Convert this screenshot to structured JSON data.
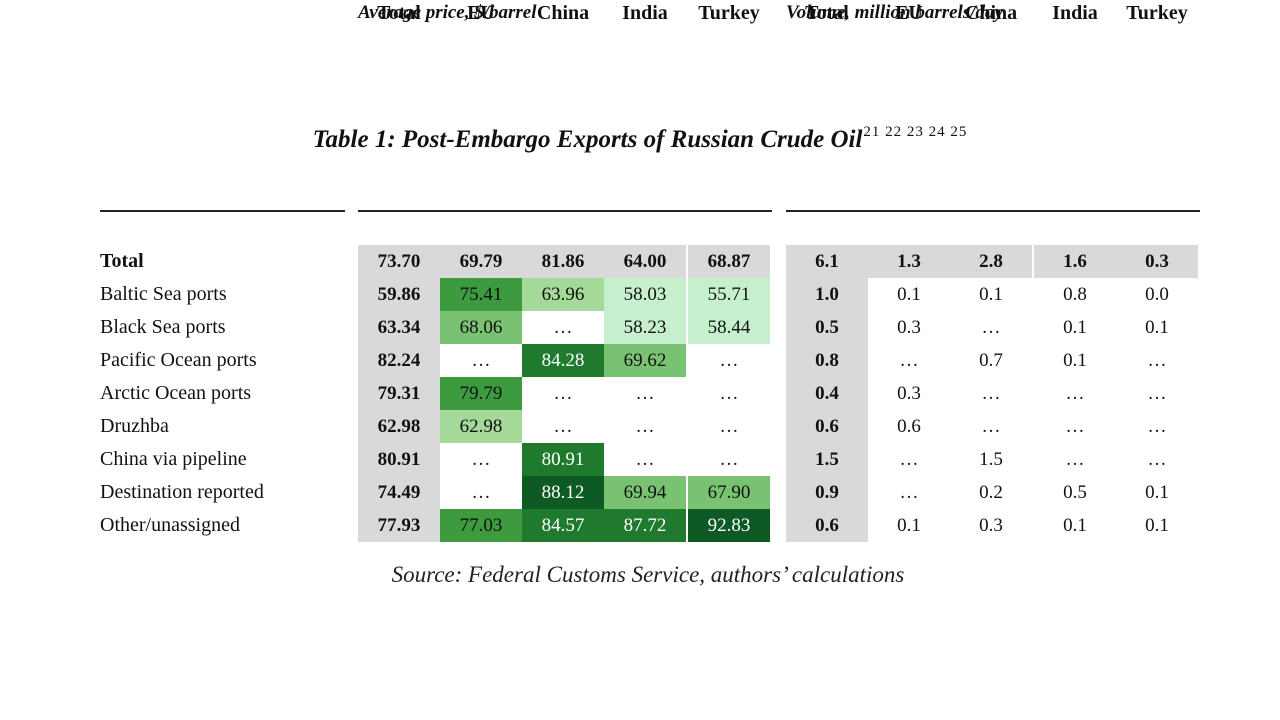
{
  "title": {
    "text": "Table 1: Post-Embargo Exports of Russian Crude Oil",
    "footnotes": "21 22 23 24 25"
  },
  "columns": [
    "Total",
    "EU",
    "China",
    "India",
    "Turkey",
    "Total",
    "EU",
    "China",
    "India",
    "Turkey"
  ],
  "subheaders": {
    "price": "Average price, $/barrel",
    "volume": "Volume, million barrels/day"
  },
  "rows": [
    {
      "label": "Total",
      "bold": true,
      "price": [
        "73.70",
        "69.79",
        "81.86",
        "64.00",
        "68.87"
      ],
      "volume": [
        "6.1",
        "1.3",
        "2.8",
        "1.6",
        "0.3"
      ]
    },
    {
      "label": "Baltic Sea ports",
      "price": [
        "59.86",
        "75.41",
        "63.96",
        "58.03",
        "55.71"
      ],
      "volume": [
        "1.0",
        "0.1",
        "0.1",
        "0.8",
        "0.0"
      ]
    },
    {
      "label": "Black Sea ports",
      "price": [
        "63.34",
        "68.06",
        "…",
        "58.23",
        "58.44"
      ],
      "volume": [
        "0.5",
        "0.3",
        "…",
        "0.1",
        "0.1"
      ]
    },
    {
      "label": "Pacific Ocean ports",
      "price": [
        "82.24",
        "…",
        "84.28",
        "69.62",
        "…"
      ],
      "volume": [
        "0.8",
        "…",
        "0.7",
        "0.1",
        "…"
      ]
    },
    {
      "label": "Arctic Ocean ports",
      "price": [
        "79.31",
        "79.79",
        "…",
        "…",
        "…"
      ],
      "volume": [
        "0.4",
        "0.3",
        "…",
        "…",
        "…"
      ]
    },
    {
      "label": "Druzhba",
      "price": [
        "62.98",
        "62.98",
        "…",
        "…",
        "…"
      ],
      "volume": [
        "0.6",
        "0.6",
        "…",
        "…",
        "…"
      ]
    },
    {
      "label": "China via pipeline",
      "price": [
        "80.91",
        "…",
        "80.91",
        "…",
        "…"
      ],
      "volume": [
        "1.5",
        "…",
        "1.5",
        "…",
        "…"
      ]
    },
    {
      "label": "Destination reported",
      "price": [
        "74.49",
        "…",
        "88.12",
        "69.94",
        "67.90"
      ],
      "volume": [
        "0.9",
        "…",
        "0.2",
        "0.5",
        "0.1"
      ]
    },
    {
      "label": "Other/unassigned",
      "price": [
        "77.93",
        "77.03",
        "84.57",
        "87.72",
        "92.83"
      ],
      "volume": [
        "0.6",
        "0.1",
        "0.3",
        "0.1",
        "0.1"
      ]
    }
  ],
  "colors": {
    "gray": "#d9d9d9",
    "green_scale": [
      "#c6efce",
      "#a4d99a",
      "#79c272",
      "#3d9a3f",
      "#1f7a2e",
      "#0e5a25"
    ]
  },
  "source": "Source: Federal Customs Service, authors’ calculations"
}
